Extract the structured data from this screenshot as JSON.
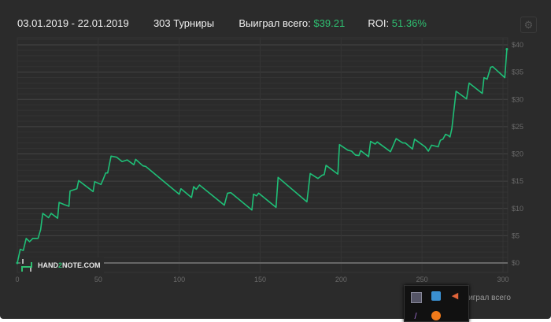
{
  "header": {
    "date_range": "03.01.2019 - 22.01.2019",
    "tournaments": "303 Турниры",
    "won_label": "Выиграл всего:",
    "won_value": "$39.21",
    "roi_label": "ROI:",
    "roi_value": "51.36%"
  },
  "settings_icon": "gear-icon",
  "logo": {
    "part1": "HAND",
    "part2": "2",
    "part3": "NOTE.COM"
  },
  "legend": {
    "label": "ыиграл всего"
  },
  "tray": {
    "icons": [
      "monitor-icon",
      "network-icon",
      "volume-icon",
      "feather-icon",
      "avast-icon"
    ]
  },
  "colors": {
    "background": "#2b2b2b",
    "line": "#1fbf77",
    "accent": "#2fbf71"
  },
  "chart_data": {
    "type": "line",
    "xlim": [
      0,
      303
    ],
    "ylim": [
      0,
      40
    ],
    "x_ticks": [
      "0",
      "50",
      "100",
      "150",
      "200",
      "250",
      "300"
    ],
    "y_ticks": [
      "$0",
      "$5",
      "$10",
      "$15",
      "$20",
      "$25",
      "$30",
      "$35",
      "$40"
    ],
    "y_axis_side": "right",
    "grid": true,
    "series": [
      {
        "points": [
          [
            0,
            0
          ],
          [
            1.8,
            2.5
          ],
          [
            3.7,
            2.3
          ],
          [
            5.5,
            4.5
          ],
          [
            7.6,
            3.9
          ],
          [
            9.6,
            4.5
          ],
          [
            12.8,
            4.5
          ],
          [
            14.4,
            6.1
          ],
          [
            15.7,
            9.1
          ],
          [
            19.3,
            8.3
          ],
          [
            20.9,
            9.1
          ],
          [
            24.9,
            8.2
          ],
          [
            25.8,
            11.1
          ],
          [
            29,
            10.7
          ],
          [
            31.9,
            10.4
          ],
          [
            32.6,
            13.2
          ],
          [
            36.8,
            13.6
          ],
          [
            37.9,
            15.1
          ],
          [
            46.8,
            13.1
          ],
          [
            47.8,
            14.9
          ],
          [
            51.7,
            14.4
          ],
          [
            53,
            15.3
          ],
          [
            54.6,
            16.5
          ],
          [
            55.8,
            16.5
          ],
          [
            57.9,
            19.6
          ],
          [
            61.4,
            19.4
          ],
          [
            64.7,
            18.6
          ],
          [
            67.9,
            18.9
          ],
          [
            72,
            18
          ],
          [
            73.1,
            19
          ],
          [
            77.6,
            17.8
          ],
          [
            79.3,
            17.7
          ],
          [
            100,
            12.6
          ],
          [
            101.1,
            13.6
          ],
          [
            107.6,
            12
          ],
          [
            108.9,
            14
          ],
          [
            110.5,
            13.5
          ],
          [
            112.5,
            14.3
          ],
          [
            127.9,
            10.6
          ],
          [
            129.8,
            12.8
          ],
          [
            131.9,
            12.9
          ],
          [
            144.9,
            9.7
          ],
          [
            145.9,
            12.6
          ],
          [
            147.8,
            12.3
          ],
          [
            149.1,
            12.8
          ],
          [
            159.8,
            10.2
          ],
          [
            161.1,
            15.7
          ],
          [
            178.9,
            11.2
          ],
          [
            180.9,
            16.4
          ],
          [
            185.7,
            15.5
          ],
          [
            188.3,
            16.1
          ],
          [
            189.6,
            16.2
          ],
          [
            190.7,
            17.9
          ],
          [
            198,
            16.3
          ],
          [
            199,
            21.7
          ],
          [
            204.1,
            20.7
          ],
          [
            206.5,
            20.5
          ],
          [
            208.9,
            19.8
          ],
          [
            211,
            19.7
          ],
          [
            212.1,
            20.6
          ],
          [
            217,
            19.5
          ],
          [
            218.2,
            22.3
          ],
          [
            221.1,
            21.8
          ],
          [
            222.3,
            22.2
          ],
          [
            230.5,
            20.4
          ],
          [
            232.4,
            21.7
          ],
          [
            234,
            22.8
          ],
          [
            238.1,
            22
          ],
          [
            239.7,
            22
          ],
          [
            244.1,
            20.9
          ],
          [
            245.4,
            22.7
          ],
          [
            251.9,
            21.3
          ],
          [
            253.9,
            20.5
          ],
          [
            255.9,
            21.6
          ],
          [
            260,
            21.3
          ],
          [
            261.3,
            22.5
          ],
          [
            262.9,
            22.7
          ],
          [
            264.5,
            23.6
          ],
          [
            266.1,
            23.4
          ],
          [
            267.3,
            23.1
          ],
          [
            268.4,
            24.6
          ],
          [
            271,
            31.5
          ],
          [
            277.5,
            30.1
          ],
          [
            279.1,
            33
          ],
          [
            287.2,
            31.1
          ],
          [
            288.3,
            34
          ],
          [
            290.2,
            33.7
          ],
          [
            292.4,
            35.9
          ],
          [
            293.7,
            36
          ],
          [
            301.1,
            34
          ],
          [
            302.4,
            39.21
          ]
        ]
      }
    ]
  }
}
